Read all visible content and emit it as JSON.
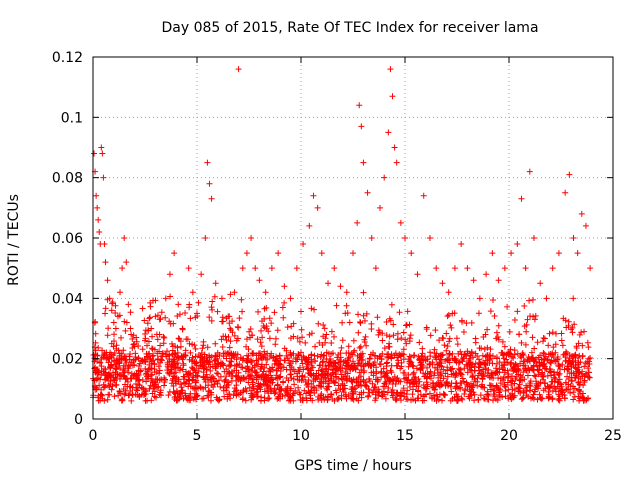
{
  "chart_data": {
    "type": "scatter",
    "title": "Day 085 of 2015, Rate Of TEC Index for receiver lama",
    "xlabel": "GPS time / hours",
    "ylabel": "ROTI / TECUs",
    "xlim": [
      0,
      25
    ],
    "ylim": [
      0,
      0.12
    ],
    "xticks": [
      0,
      5,
      10,
      15,
      20,
      25
    ],
    "yticks": [
      0,
      0.02,
      0.04,
      0.06,
      0.08,
      0.1,
      0.12
    ],
    "xtick_labels": [
      "0",
      "5",
      "10",
      "15",
      "20",
      "25"
    ],
    "ytick_labels": [
      "0",
      "0.02",
      "0.04",
      "0.06",
      "0.08",
      "0.1",
      "0.12"
    ],
    "grid": true,
    "marker": "+",
    "color": "#ff0000",
    "series": [
      {
        "values_note": "",
        "points": [
          [
            0.05,
            0.088
          ],
          [
            0.1,
            0.082
          ],
          [
            0.15,
            0.074
          ],
          [
            0.2,
            0.07
          ],
          [
            0.25,
            0.066
          ],
          [
            0.3,
            0.062
          ],
          [
            0.35,
            0.058
          ],
          [
            0.4,
            0.09
          ],
          [
            0.45,
            0.088
          ],
          [
            0.5,
            0.08
          ],
          [
            0.55,
            0.058
          ],
          [
            0.6,
            0.052
          ],
          [
            0.7,
            0.046
          ],
          [
            0.8,
            0.04
          ],
          [
            0.9,
            0.036
          ],
          [
            1.0,
            0.032
          ],
          [
            1.1,
            0.03
          ],
          [
            1.2,
            0.034
          ],
          [
            1.3,
            0.042
          ],
          [
            1.4,
            0.05
          ],
          [
            1.5,
            0.06
          ],
          [
            1.6,
            0.052
          ],
          [
            1.7,
            0.038
          ],
          [
            1.8,
            0.03
          ],
          [
            2.0,
            0.024
          ],
          [
            2.2,
            0.02
          ],
          [
            2.5,
            0.026
          ],
          [
            2.8,
            0.03
          ],
          [
            3.0,
            0.034
          ],
          [
            3.2,
            0.028
          ],
          [
            3.5,
            0.04
          ],
          [
            3.7,
            0.048
          ],
          [
            3.9,
            0.055
          ],
          [
            4.1,
            0.038
          ],
          [
            4.3,
            0.03
          ],
          [
            4.6,
            0.05
          ],
          [
            4.8,
            0.042
          ],
          [
            5.0,
            0.035
          ],
          [
            5.2,
            0.048
          ],
          [
            5.4,
            0.06
          ],
          [
            5.5,
            0.085
          ],
          [
            5.6,
            0.078
          ],
          [
            5.7,
            0.073
          ],
          [
            5.9,
            0.045
          ],
          [
            6.2,
            0.04
          ],
          [
            6.5,
            0.034
          ],
          [
            6.8,
            0.042
          ],
          [
            7.0,
            0.116
          ],
          [
            7.2,
            0.05
          ],
          [
            7.4,
            0.055
          ],
          [
            7.6,
            0.06
          ],
          [
            7.8,
            0.05
          ],
          [
            8.0,
            0.046
          ],
          [
            8.3,
            0.042
          ],
          [
            8.6,
            0.05
          ],
          [
            8.9,
            0.055
          ],
          [
            9.2,
            0.044
          ],
          [
            9.5,
            0.04
          ],
          [
            9.8,
            0.05
          ],
          [
            10.1,
            0.058
          ],
          [
            10.4,
            0.064
          ],
          [
            10.6,
            0.074
          ],
          [
            10.8,
            0.07
          ],
          [
            11.0,
            0.055
          ],
          [
            11.3,
            0.045
          ],
          [
            11.6,
            0.05
          ],
          [
            11.9,
            0.044
          ],
          [
            12.2,
            0.042
          ],
          [
            12.5,
            0.055
          ],
          [
            12.7,
            0.065
          ],
          [
            12.8,
            0.104
          ],
          [
            12.9,
            0.097
          ],
          [
            13.0,
            0.085
          ],
          [
            13.2,
            0.075
          ],
          [
            13.4,
            0.06
          ],
          [
            13.6,
            0.05
          ],
          [
            13.8,
            0.07
          ],
          [
            14.0,
            0.08
          ],
          [
            14.2,
            0.095
          ],
          [
            14.3,
            0.116
          ],
          [
            14.4,
            0.107
          ],
          [
            14.5,
            0.09
          ],
          [
            14.6,
            0.085
          ],
          [
            14.8,
            0.065
          ],
          [
            15.0,
            0.06
          ],
          [
            15.3,
            0.055
          ],
          [
            15.6,
            0.048
          ],
          [
            15.9,
            0.074
          ],
          [
            16.2,
            0.06
          ],
          [
            16.5,
            0.05
          ],
          [
            16.8,
            0.045
          ],
          [
            17.1,
            0.042
          ],
          [
            17.4,
            0.05
          ],
          [
            17.7,
            0.058
          ],
          [
            18.0,
            0.05
          ],
          [
            18.3,
            0.046
          ],
          [
            18.6,
            0.04
          ],
          [
            18.9,
            0.048
          ],
          [
            19.2,
            0.055
          ],
          [
            19.5,
            0.046
          ],
          [
            19.8,
            0.05
          ],
          [
            20.1,
            0.055
          ],
          [
            20.4,
            0.058
          ],
          [
            20.6,
            0.073
          ],
          [
            20.8,
            0.05
          ],
          [
            21.0,
            0.082
          ],
          [
            21.2,
            0.06
          ],
          [
            21.5,
            0.045
          ],
          [
            21.8,
            0.04
          ],
          [
            22.1,
            0.05
          ],
          [
            22.4,
            0.055
          ],
          [
            22.7,
            0.075
          ],
          [
            22.9,
            0.081
          ],
          [
            23.1,
            0.06
          ],
          [
            23.3,
            0.055
          ],
          [
            23.5,
            0.068
          ],
          [
            23.7,
            0.064
          ],
          [
            23.9,
            0.05
          ]
        ]
      }
    ]
  }
}
